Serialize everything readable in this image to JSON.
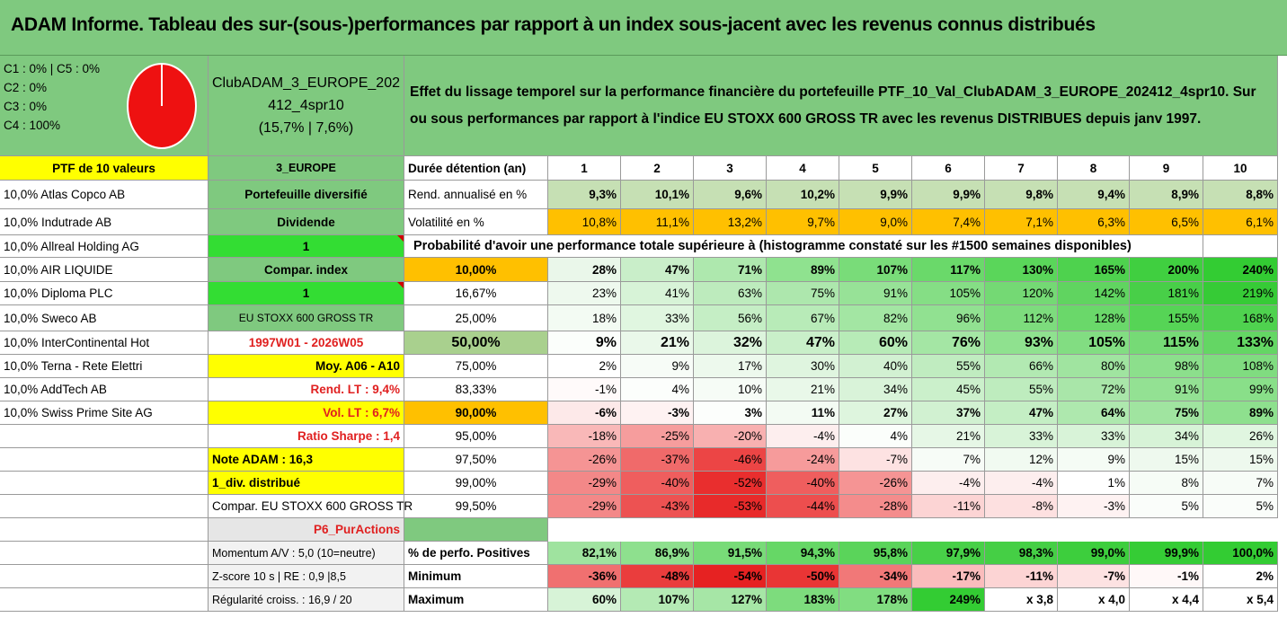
{
  "title": "ADAM Informe. Tableau des sur-(sous-)performances par rapport à un index sous-jacent avec les revenus connus distribués",
  "legend": [
    "C1 : 0% | C5 : 0%",
    "C2 : 0%",
    "C3 : 0%",
    "C4 : 100%"
  ],
  "pie_color": "#ee1111",
  "portfolio_code": [
    "ClubADAM_3_EUROPE_202",
    "412_4spr10",
    "(15,7% | 7,6%)"
  ],
  "effect_text": "Effet du lissage temporel sur la performance financière du portefeuille PTF_10_Val_ClubADAM_3_EUROPE_202412_4spr10. Sur ou sous performances par rapport à l'indice EU STOXX 600 GROSS TR avec les revenus DISTRIBUES depuis janv 1997.",
  "ptf_label": "PTF de 10 valeurs",
  "region": "3_EUROPE",
  "duration_label": "Durée détention (an)",
  "years": [
    "1",
    "2",
    "3",
    "4",
    "5",
    "6",
    "7",
    "8",
    "9",
    "10"
  ],
  "holdings": [
    "10,0% Atlas Copco AB",
    "10,0% Indutrade AB",
    "10,0% Allreal Holding AG",
    "10,0% AIR LIQUIDE",
    "10,0% Diploma PLC",
    "10,0% Sweco AB",
    "10,0% InterContinental Hot",
    "10,0% Terna - Rete Elettri",
    "10,0% AddTech AB",
    "10,0% Swiss Prime Site AG"
  ],
  "side": {
    "diversified": "Portefeuille diversifié",
    "dividend": "Dividende",
    "dividend_value": "1",
    "compar_index": "Compar. index",
    "compar_value": "1",
    "index_name": "EU STOXX 600 GROSS TR",
    "period": "1997W01 - 2026W05",
    "moy": "Moy. A06 - A10",
    "rend_lt": "Rend. LT : 9,4%",
    "vol_lt": "Vol. LT : 6,7%",
    "sharpe": "Ratio Sharpe : 1,4",
    "note": "Note ADAM : 16,3",
    "div": "1_div. distribué",
    "compar_full": "Compar. EU STOXX 600 GROSS TR",
    "p6": "P6_PurActions",
    "momentum": "Momentum A/V : 5,0 (10=neutre)",
    "zscore": "Z-score 10 s | RE : 0,9 |8,5",
    "regularite": "Régularité croiss. : 16,9 / 20"
  },
  "rend_label": "Rend. annualisé en %",
  "rend": [
    "9,3%",
    "10,1%",
    "9,6%",
    "10,2%",
    "9,9%",
    "9,9%",
    "9,8%",
    "9,4%",
    "8,9%",
    "8,8%"
  ],
  "vol_label": "Volatilité en %",
  "vol": [
    "10,8%",
    "11,1%",
    "13,2%",
    "9,7%",
    "9,0%",
    "7,4%",
    "7,1%",
    "6,3%",
    "6,5%",
    "6,1%"
  ],
  "prob_title": "Probabilité d'avoir une performance totale supérieure à (histogramme constaté sur les #1500 semaines disponibles)",
  "prob_rows": [
    {
      "p": "10,00%",
      "v": [
        "28%",
        "47%",
        "71%",
        "89%",
        "107%",
        "117%",
        "130%",
        "165%",
        "200%",
        "240%"
      ],
      "c": [
        "#eaf7ea",
        "#c9eec9",
        "#aee8ae",
        "#8fe28f",
        "#79dc79",
        "#6ad96a",
        "#5ad65a",
        "#4ed24e",
        "#40cf40",
        "#33cc33"
      ]
    },
    {
      "p": "16,67%",
      "v": [
        "23%",
        "41%",
        "63%",
        "75%",
        "91%",
        "105%",
        "120%",
        "142%",
        "181%",
        "219%"
      ],
      "c": [
        "#eef9ee",
        "#d7f3d7",
        "#bdebbd",
        "#ade7ad",
        "#97e297",
        "#85de85",
        "#74d974",
        "#60d460",
        "#48cf48",
        "#36cb36"
      ]
    },
    {
      "p": "25,00%",
      "v": [
        "18%",
        "33%",
        "56%",
        "67%",
        "82%",
        "96%",
        "112%",
        "128%",
        "155%",
        "168%"
      ],
      "c": [
        "#f3fbf3",
        "#e0f6e0",
        "#c5eec5",
        "#b8ebb8",
        "#a3e6a3",
        "#91e191",
        "#7ddc7d",
        "#6ad86a",
        "#56d456",
        "#4fd24f"
      ]
    },
    {
      "p": "50,00%",
      "v": [
        "9%",
        "21%",
        "32%",
        "47%",
        "60%",
        "76%",
        "93%",
        "105%",
        "115%",
        "133%"
      ],
      "c": [
        "#fbfefb",
        "#eaf8ea",
        "#dcf4dc",
        "#c9efc9",
        "#b7ebb7",
        "#a4e6a4",
        "#8fe18f",
        "#82dd82",
        "#76da76",
        "#64d664"
      ],
      "big": true
    },
    {
      "p": "75,00%",
      "v": [
        "2%",
        "9%",
        "17%",
        "30%",
        "40%",
        "55%",
        "66%",
        "80%",
        "98%",
        "108%"
      ],
      "c": [
        "#ffffff",
        "#f7fcf7",
        "#edf9ed",
        "#dff5df",
        "#d2f1d2",
        "#c0ecc0",
        "#b2e9b2",
        "#a0e4a0",
        "#8cdf8c",
        "#80dc80"
      ]
    },
    {
      "p": "83,33%",
      "v": [
        "-1%",
        "4%",
        "10%",
        "21%",
        "34%",
        "45%",
        "55%",
        "72%",
        "91%",
        "99%"
      ],
      "c": [
        "#fffafa",
        "#fcfefc",
        "#f6fcf6",
        "#e9f8e9",
        "#d9f3d9",
        "#cbf0cb",
        "#beecbe",
        "#a9e6a9",
        "#93e193",
        "#89df89"
      ]
    },
    {
      "p": "90,00%",
      "v": [
        "-6%",
        "-3%",
        "3%",
        "11%",
        "27%",
        "37%",
        "47%",
        "64%",
        "75%",
        "89%"
      ],
      "c": [
        "#fde9e9",
        "#fef2f2",
        "#fcfefc",
        "#f3fbf3",
        "#def5de",
        "#d1f1d1",
        "#c4eec4",
        "#aee8ae",
        "#a0e4a0",
        "#8ee08e"
      ],
      "big": true
    },
    {
      "p": "95,00%",
      "v": [
        "-18%",
        "-25%",
        "-20%",
        "-4%",
        "4%",
        "21%",
        "33%",
        "33%",
        "34%",
        "26%"
      ],
      "c": [
        "#f9b8b8",
        "#f69d9d",
        "#f8b0b0",
        "#fdeeee",
        "#fbfefb",
        "#e6f7e6",
        "#d8f3d8",
        "#d8f3d8",
        "#d7f3d7",
        "#e0f6e0"
      ]
    },
    {
      "p": "97,50%",
      "v": [
        "-26%",
        "-37%",
        "-46%",
        "-24%",
        "-7%",
        "7%",
        "12%",
        "9%",
        "15%",
        "15%"
      ],
      "c": [
        "#f59494",
        "#f06a6a",
        "#ec4545",
        "#f69b9b",
        "#fde2e2",
        "#f7fcf7",
        "#f1faf1",
        "#f5fcf5",
        "#eef9ee",
        "#eef9ee"
      ]
    },
    {
      "p": "99,00%",
      "v": [
        "-29%",
        "-40%",
        "-52%",
        "-40%",
        "-26%",
        "-4%",
        "-4%",
        "1%",
        "8%",
        "7%"
      ],
      "c": [
        "#f38888",
        "#ef5e5e",
        "#e92e2e",
        "#ef5e5e",
        "#f59494",
        "#fdeeee",
        "#fdeeee",
        "#ffffff",
        "#f6fcf6",
        "#f7fcf7"
      ]
    },
    {
      "p": "99,50%",
      "v": [
        "-29%",
        "-43%",
        "-53%",
        "-44%",
        "-28%",
        "-11%",
        "-8%",
        "-3%",
        "5%",
        "5%"
      ],
      "c": [
        "#f38888",
        "#ed5252",
        "#e82a2a",
        "#ed4e4e",
        "#f48c8c",
        "#fcd4d4",
        "#fde0e0",
        "#fef2f2",
        "#fafdfa",
        "#fafdfa"
      ]
    }
  ],
  "pos_label": "% de perfo. Positives",
  "pos": [
    "82,1%",
    "86,9%",
    "91,5%",
    "94,3%",
    "95,8%",
    "97,9%",
    "98,3%",
    "99,0%",
    "99,9%",
    "100,0%"
  ],
  "pos_colors": [
    "#9fe39f",
    "#8ee08e",
    "#78db78",
    "#66d766",
    "#5ad45a",
    "#48d048",
    "#45cf45",
    "#3dce3d",
    "#35cc35",
    "#33cc33"
  ],
  "min_label": "Minimum",
  "min": [
    "-36%",
    "-48%",
    "-54%",
    "-50%",
    "-34%",
    "-17%",
    "-11%",
    "-7%",
    "-1%",
    "2%"
  ],
  "min_colors": [
    "#f07070",
    "#ea3d3d",
    "#e62222",
    "#e93535",
    "#f17878",
    "#fabcbc",
    "#fcd4d4",
    "#fde2e2",
    "#fff8f8",
    "#ffffff"
  ],
  "max_label": "Maximum",
  "max": [
    "60%",
    "107%",
    "127%",
    "183%",
    "178%",
    "249%",
    "x 3,8",
    "x 4,0",
    "x 4,4",
    "x 5,4"
  ],
  "max_colors": [
    "#d7f3d7",
    "#b4eab4",
    "#a6e6a6",
    "#7ddc7d",
    "#81dd81",
    "#33cc33",
    "#ffffff",
    "#ffffff",
    "#ffffff",
    "#ffffff"
  ]
}
